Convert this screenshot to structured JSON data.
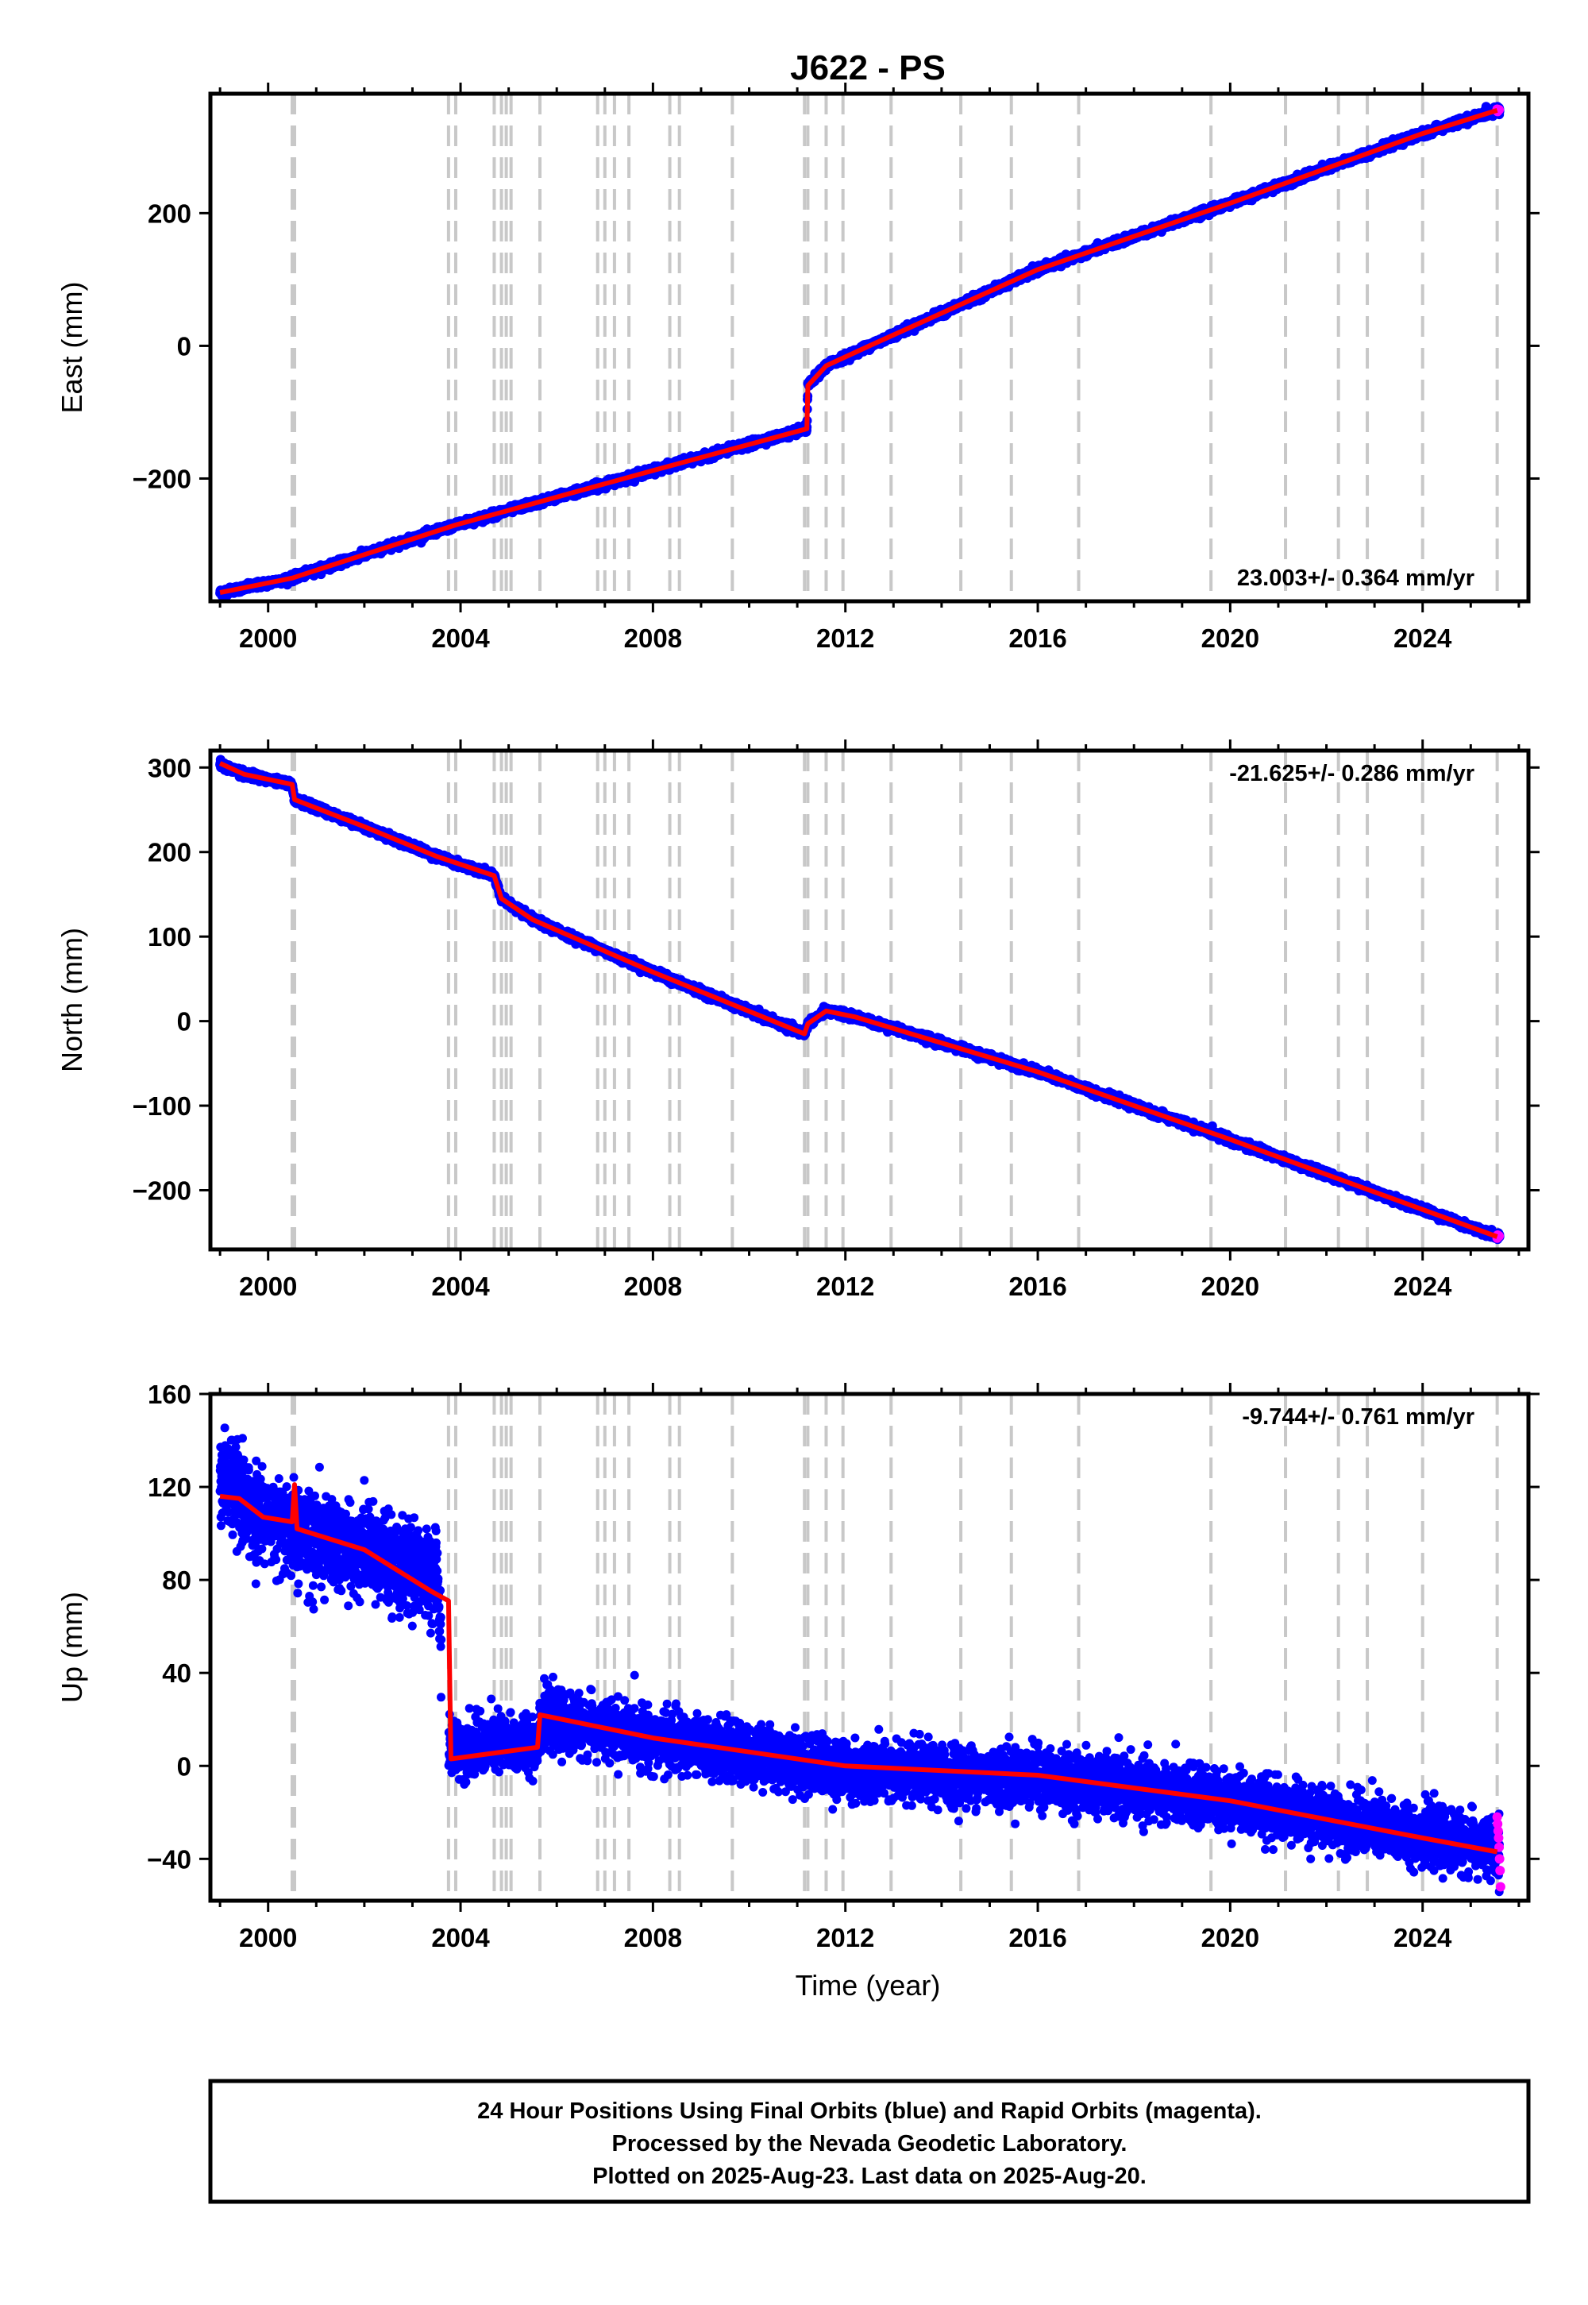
{
  "chart_data": {
    "type": "scatter",
    "title": "J622 - PS",
    "xlabel": "Time (year)",
    "xlim": [
      1998.8,
      2026.2
    ],
    "x_ticks": [
      2000,
      2004,
      2008,
      2012,
      2016,
      2020,
      2024
    ],
    "x_tick_labels": [
      "2000",
      "2004",
      "2008",
      "2012",
      "2016",
      "2020",
      "2024"
    ],
    "event_lines": [
      2000.5,
      2000.55,
      2003.75,
      2003.9,
      2004.7,
      2004.85,
      2004.95,
      2005.05,
      2005.65,
      2006.85,
      2007.0,
      2007.2,
      2007.5,
      2008.35,
      2008.55,
      2009.65,
      2011.15,
      2011.22,
      2011.6,
      2011.95,
      2012.95,
      2014.4,
      2015.45,
      2016.85,
      2019.6,
      2021.15,
      2022.25,
      2022.85,
      2024.0,
      2025.55
    ],
    "subplots": [
      {
        "ylabel": "East (mm)",
        "ylim": [
          -385,
          380
        ],
        "y_ticks": [
          -200,
          0,
          200
        ],
        "y_tick_labels": [
          "−200",
          "0",
          "200"
        ],
        "rate_label": "23.003+/- 0.364 mm/yr",
        "rate_position": "bottom-right",
        "start_year": 1999.0,
        "end_year": 2025.6,
        "noise_mm": 2.5,
        "series_final_knots": [
          [
            1999.0,
            -372
          ],
          [
            2000.5,
            -350
          ],
          [
            2003.9,
            -270
          ],
          [
            2008.0,
            -188
          ],
          [
            2011.2,
            -125
          ],
          [
            2011.22,
            -60
          ],
          [
            2011.6,
            -30
          ],
          [
            2012.5,
            0
          ],
          [
            2016.0,
            115
          ],
          [
            2020.0,
            215
          ],
          [
            2024.0,
            320
          ],
          [
            2025.55,
            355
          ]
        ],
        "model_knots": [
          [
            1999.0,
            -372
          ],
          [
            2000.5,
            -350
          ],
          [
            2003.9,
            -270
          ],
          [
            2008.0,
            -188
          ],
          [
            2011.2,
            -125
          ],
          [
            2011.22,
            -60
          ],
          [
            2011.6,
            -30
          ],
          [
            2012.5,
            0
          ],
          [
            2016.0,
            115
          ],
          [
            2020.0,
            215
          ],
          [
            2024.0,
            320
          ],
          [
            2025.55,
            355
          ]
        ]
      },
      {
        "ylabel": "North (mm)",
        "ylim": [
          -270,
          320
        ],
        "y_ticks": [
          -200,
          -100,
          0,
          100,
          200,
          300
        ],
        "y_tick_labels": [
          "−200",
          "−100",
          "0",
          "100",
          "200",
          "300"
        ],
        "rate_label": "-21.625+/- 0.286 mm/yr",
        "rate_position": "top-right",
        "start_year": 1999.0,
        "end_year": 2025.6,
        "noise_mm": 2.0,
        "series_final_knots": [
          [
            1999.0,
            305
          ],
          [
            1999.5,
            292
          ],
          [
            2000.5,
            280
          ],
          [
            2000.55,
            262
          ],
          [
            2002.0,
            230
          ],
          [
            2003.5,
            195
          ],
          [
            2004.7,
            172
          ],
          [
            2004.85,
            145
          ],
          [
            2005.5,
            120
          ],
          [
            2008.0,
            58
          ],
          [
            2011.15,
            -15
          ],
          [
            2011.22,
            -3
          ],
          [
            2011.6,
            12
          ],
          [
            2012.2,
            5
          ],
          [
            2016.0,
            -60
          ],
          [
            2020.0,
            -140
          ],
          [
            2025.55,
            -255
          ]
        ],
        "model_knots": [
          [
            1999.0,
            305
          ],
          [
            1999.5,
            292
          ],
          [
            2000.5,
            280
          ],
          [
            2000.55,
            262
          ],
          [
            2002.0,
            230
          ],
          [
            2003.5,
            195
          ],
          [
            2004.7,
            172
          ],
          [
            2004.85,
            145
          ],
          [
            2005.5,
            120
          ],
          [
            2008.0,
            58
          ],
          [
            2011.15,
            -15
          ],
          [
            2011.22,
            -3
          ],
          [
            2011.6,
            12
          ],
          [
            2012.2,
            5
          ],
          [
            2016.0,
            -60
          ],
          [
            2020.0,
            -140
          ],
          [
            2025.55,
            -255
          ]
        ]
      },
      {
        "ylabel": "Up (mm)",
        "ylim": [
          -58,
          160
        ],
        "y_ticks": [
          -40,
          0,
          40,
          80,
          120,
          160
        ],
        "y_tick_labels": [
          "−40",
          "0",
          "40",
          "80",
          "120",
          "160"
        ],
        "rate_label": "-9.744+/- 0.761 mm/yr",
        "rate_position": "top-right",
        "start_year": 1999.0,
        "end_year": 2025.6,
        "gap": [
          2003.6,
          2003.75
        ],
        "noise_mm": 6.0,
        "series_final_knots": [
          [
            1999.0,
            125
          ],
          [
            1999.5,
            112
          ],
          [
            2000.5,
            105
          ],
          [
            2000.55,
            100
          ],
          [
            2002.0,
            92
          ],
          [
            2003.5,
            82
          ],
          [
            2003.75,
            8
          ],
          [
            2005.6,
            10
          ],
          [
            2005.65,
            20
          ],
          [
            2008.0,
            12
          ],
          [
            2012.0,
            -2
          ],
          [
            2016.0,
            -5
          ],
          [
            2020.0,
            -15
          ],
          [
            2024.0,
            -30
          ],
          [
            2025.55,
            -36
          ]
        ],
        "model_knots": [
          [
            1999.0,
            116
          ],
          [
            1999.4,
            115
          ],
          [
            1999.9,
            107
          ],
          [
            2000.5,
            105
          ],
          [
            2000.55,
            121
          ],
          [
            2000.6,
            102
          ],
          [
            2002.0,
            93
          ],
          [
            2003.4,
            75
          ],
          [
            2003.75,
            71
          ],
          [
            2003.8,
            3
          ],
          [
            2005.6,
            8
          ],
          [
            2005.65,
            22
          ],
          [
            2008.0,
            12
          ],
          [
            2012.0,
            0
          ],
          [
            2016.0,
            -4
          ],
          [
            2020.0,
            -15
          ],
          [
            2024.0,
            -31
          ],
          [
            2025.55,
            -37
          ]
        ],
        "series_rapid": [
          [
            2025.55,
            -22
          ],
          [
            2025.56,
            -25
          ],
          [
            2025.57,
            -28
          ],
          [
            2025.58,
            -31
          ],
          [
            2025.59,
            -35
          ],
          [
            2025.6,
            -40
          ],
          [
            2025.61,
            -45
          ],
          [
            2025.62,
            -52
          ]
        ]
      }
    ]
  },
  "footer": {
    "line1": "24 Hour Positions Using Final Orbits (blue) and Rapid Orbits (magenta).",
    "line2": "Processed by the Nevada Geodetic Laboratory.",
    "line3": "Plotted on 2025-Aug-23. Last data on 2025-Aug-20."
  },
  "colors": {
    "final_orbits": "#0000ff",
    "rapid_orbits": "#ff00ff",
    "model": "#ff0000",
    "event_line": "#c8c8c8"
  }
}
